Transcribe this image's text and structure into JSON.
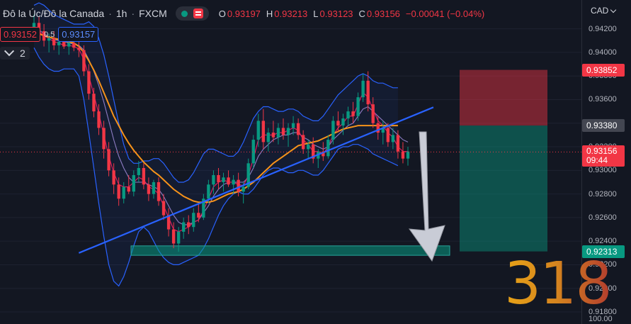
{
  "header": {
    "symbol": "Đô la Úc/Đô la Canada",
    "timeframe": "1h",
    "broker": "FXCM",
    "ohlc": {
      "o_label": "O",
      "o": "0.93197",
      "h_label": "H",
      "h": "0.93213",
      "l_label": "L",
      "l": "0.93123",
      "c_label": "C",
      "c": "0.93156",
      "change": "−0.00041 (−0.04%)"
    }
  },
  "quote": {
    "bid": "0.93152",
    "ask": "0.93157",
    "spread": "0.5"
  },
  "indicators": {
    "count": "2"
  },
  "axis": {
    "currency": "CAD",
    "ticks": [
      "0.94200",
      "0.94000",
      "0.93800",
      "0.93600",
      "0.93400",
      "0.93200",
      "0.93000",
      "0.92800",
      "0.92600",
      "0.92400",
      "0.92200",
      "0.92000",
      "0.91800"
    ],
    "extra_tick": "100.00"
  },
  "price_labels": {
    "stop": "0.93852",
    "entry": "0.93380",
    "current": "0.93156",
    "countdown": "09:44",
    "target": "0.92313"
  },
  "watermark": "318",
  "colors": {
    "up": "#089981",
    "down": "#f23645",
    "bb": "#2962ff",
    "ma": "#f7931a",
    "trend": "#2962ff",
    "bg": "#131722"
  },
  "chart_data": {
    "type": "candlestick",
    "ylim": [
      0.918,
      0.943
    ],
    "candles": [
      [
        0.942,
        0.9432,
        0.941,
        0.9425
      ],
      [
        0.9425,
        0.943,
        0.9413,
        0.9418
      ],
      [
        0.9418,
        0.9424,
        0.9405,
        0.941
      ],
      [
        0.941,
        0.9416,
        0.94,
        0.9412
      ],
      [
        0.9412,
        0.9418,
        0.9402,
        0.9406
      ],
      [
        0.9406,
        0.9412,
        0.9398,
        0.9409
      ],
      [
        0.9409,
        0.9414,
        0.9403,
        0.9405
      ],
      [
        0.9405,
        0.941,
        0.9398,
        0.9408
      ],
      [
        0.9408,
        0.9413,
        0.9401,
        0.9404
      ],
      [
        0.9404,
        0.941,
        0.9396,
        0.9402
      ],
      [
        0.9402,
        0.9406,
        0.938,
        0.9384
      ],
      [
        0.9384,
        0.939,
        0.936,
        0.9365
      ],
      [
        0.9365,
        0.937,
        0.9345,
        0.935
      ],
      [
        0.935,
        0.9356,
        0.933,
        0.9336
      ],
      [
        0.9336,
        0.9342,
        0.931,
        0.9318
      ],
      [
        0.9318,
        0.9324,
        0.9295,
        0.93
      ],
      [
        0.93,
        0.9306,
        0.928,
        0.9288
      ],
      [
        0.9288,
        0.9294,
        0.927,
        0.9276
      ],
      [
        0.9276,
        0.929,
        0.9272,
        0.9286
      ],
      [
        0.9286,
        0.9296,
        0.928,
        0.9282
      ],
      [
        0.9282,
        0.93,
        0.9278,
        0.9296
      ],
      [
        0.9296,
        0.9308,
        0.929,
        0.9302
      ],
      [
        0.9302,
        0.9306,
        0.9284,
        0.9288
      ],
      [
        0.9288,
        0.9294,
        0.9274,
        0.928
      ],
      [
        0.928,
        0.9292,
        0.9276,
        0.929
      ],
      [
        0.929,
        0.9294,
        0.927,
        0.9274
      ],
      [
        0.9274,
        0.928,
        0.9258,
        0.9262
      ],
      [
        0.9262,
        0.9268,
        0.9244,
        0.925
      ],
      [
        0.925,
        0.9256,
        0.9234,
        0.9238
      ],
      [
        0.9238,
        0.9252,
        0.9231,
        0.9248
      ],
      [
        0.9248,
        0.926,
        0.9242,
        0.9256
      ],
      [
        0.9256,
        0.9262,
        0.9246,
        0.9252
      ],
      [
        0.9252,
        0.9268,
        0.9248,
        0.9264
      ],
      [
        0.9264,
        0.9272,
        0.9256,
        0.926
      ],
      [
        0.926,
        0.928,
        0.9258,
        0.9276
      ],
      [
        0.9276,
        0.9292,
        0.9272,
        0.9288
      ],
      [
        0.9288,
        0.93,
        0.928,
        0.9296
      ],
      [
        0.9296,
        0.9302,
        0.9284,
        0.929
      ],
      [
        0.929,
        0.9298,
        0.9282,
        0.9294
      ],
      [
        0.9294,
        0.93,
        0.9286,
        0.9288
      ],
      [
        0.9288,
        0.9296,
        0.928,
        0.9292
      ],
      [
        0.9292,
        0.9298,
        0.9278,
        0.9282
      ],
      [
        0.9282,
        0.929,
        0.9272,
        0.9286
      ],
      [
        0.9286,
        0.931,
        0.9284,
        0.9306
      ],
      [
        0.9306,
        0.933,
        0.9302,
        0.9326
      ],
      [
        0.9326,
        0.9348,
        0.932,
        0.9342
      ],
      [
        0.9342,
        0.9352,
        0.9318,
        0.9324
      ],
      [
        0.9324,
        0.9336,
        0.9316,
        0.9332
      ],
      [
        0.9332,
        0.9342,
        0.9324,
        0.9328
      ],
      [
        0.9328,
        0.934,
        0.9322,
        0.9336
      ],
      [
        0.9336,
        0.9344,
        0.9326,
        0.933
      ],
      [
        0.933,
        0.934,
        0.932,
        0.9336
      ],
      [
        0.9336,
        0.9346,
        0.933,
        0.934
      ],
      [
        0.934,
        0.9344,
        0.9326,
        0.933
      ],
      [
        0.933,
        0.9334,
        0.9314,
        0.9318
      ],
      [
        0.9318,
        0.9326,
        0.931,
        0.9322
      ],
      [
        0.9322,
        0.9328,
        0.9306,
        0.931
      ],
      [
        0.931,
        0.9318,
        0.9302,
        0.9316
      ],
      [
        0.9316,
        0.9324,
        0.9308,
        0.9312
      ],
      [
        0.9312,
        0.933,
        0.931,
        0.9326
      ],
      [
        0.9326,
        0.9346,
        0.9322,
        0.9342
      ],
      [
        0.9342,
        0.935,
        0.9332,
        0.9338
      ],
      [
        0.9338,
        0.9348,
        0.933,
        0.9344
      ],
      [
        0.9344,
        0.9354,
        0.9338,
        0.935
      ],
      [
        0.935,
        0.9358,
        0.934,
        0.9346
      ],
      [
        0.9346,
        0.9366,
        0.9342,
        0.9362
      ],
      [
        0.9362,
        0.9382,
        0.9358,
        0.9376
      ],
      [
        0.9376,
        0.9384,
        0.935,
        0.9356
      ],
      [
        0.9356,
        0.9362,
        0.9336,
        0.934
      ],
      [
        0.934,
        0.9346,
        0.9326,
        0.9332
      ],
      [
        0.9332,
        0.9342,
        0.9322,
        0.9336
      ],
      [
        0.9336,
        0.934,
        0.932,
        0.9324
      ],
      [
        0.9324,
        0.9336,
        0.9318,
        0.933
      ],
      [
        0.933,
        0.9334,
        0.931,
        0.9316
      ],
      [
        0.9316,
        0.9324,
        0.9306,
        0.931
      ],
      [
        0.931,
        0.932,
        0.9304,
        0.9316
      ]
    ],
    "bb_upper": [
      0.944,
      0.9442,
      0.944,
      0.9436,
      0.9432,
      0.943,
      0.9428,
      0.9426,
      0.9424,
      0.9424,
      0.9424,
      0.9426,
      0.9422,
      0.9412,
      0.9398,
      0.938,
      0.936,
      0.934,
      0.9322,
      0.931,
      0.9306,
      0.9306,
      0.9308,
      0.9308,
      0.931,
      0.931,
      0.9306,
      0.93,
      0.9294,
      0.929,
      0.929,
      0.9292,
      0.9298,
      0.9306,
      0.9314,
      0.9318,
      0.9318,
      0.9316,
      0.9314,
      0.9312,
      0.9312,
      0.9316,
      0.9324,
      0.9334,
      0.9344,
      0.935,
      0.9354,
      0.9354,
      0.9352,
      0.935,
      0.935,
      0.9352,
      0.9352,
      0.935,
      0.9346,
      0.9344,
      0.9342,
      0.9342,
      0.9346,
      0.9352,
      0.9358,
      0.9364,
      0.9368,
      0.9372,
      0.9376,
      0.938,
      0.9382,
      0.938,
      0.9376,
      0.9374,
      0.9374,
      0.9372,
      0.937,
      0.937
    ],
    "bb_lower": [
      0.9404,
      0.9396,
      0.939,
      0.9386,
      0.9384,
      0.9384,
      0.9386,
      0.9386,
      0.9386,
      0.938,
      0.936,
      0.9332,
      0.9302,
      0.9272,
      0.9244,
      0.922,
      0.9206,
      0.9202,
      0.921,
      0.9222,
      0.9236,
      0.9248,
      0.9252,
      0.9248,
      0.924,
      0.9232,
      0.9226,
      0.9222,
      0.922,
      0.922,
      0.9222,
      0.9224,
      0.9226,
      0.9228,
      0.9234,
      0.9242,
      0.9252,
      0.9262,
      0.927,
      0.9276,
      0.928,
      0.9282,
      0.928,
      0.928,
      0.9284,
      0.929,
      0.9296,
      0.93,
      0.9302,
      0.9302,
      0.93,
      0.9298,
      0.9298,
      0.93,
      0.93,
      0.9298,
      0.9296,
      0.9296,
      0.93,
      0.9306,
      0.9312,
      0.9318,
      0.932,
      0.932,
      0.9322,
      0.9322,
      0.932,
      0.9318,
      0.9314,
      0.9312,
      0.931,
      0.9308,
      0.9306,
      0.9304
    ],
    "ma": [
      0.9418,
      0.9416,
      0.9414,
      0.9413,
      0.9412,
      0.9411,
      0.941,
      0.9409,
      0.9408,
      0.9405,
      0.94,
      0.9393,
      0.9385,
      0.9376,
      0.9366,
      0.9356,
      0.9346,
      0.9338,
      0.933,
      0.9323,
      0.9317,
      0.9312,
      0.9307,
      0.9303,
      0.9299,
      0.9296,
      0.9292,
      0.9288,
      0.9284,
      0.9281,
      0.9278,
      0.9276,
      0.9274,
      0.9273,
      0.9273,
      0.9273,
      0.9274,
      0.9276,
      0.9278,
      0.928,
      0.9281,
      0.9282,
      0.9284,
      0.9287,
      0.929,
      0.9294,
      0.9298,
      0.9302,
      0.9306,
      0.9309,
      0.9312,
      0.9315,
      0.9318,
      0.9321,
      0.9322,
      0.9323,
      0.9324,
      0.9325,
      0.9327,
      0.9329,
      0.9331,
      0.9333,
      0.9335,
      0.9336,
      0.9337,
      0.9338,
      0.9338,
      0.9338,
      0.9338,
      0.9338,
      0.9338,
      0.9338,
      0.9338,
      0.9338
    ],
    "fast": [
      0.942,
      0.9418,
      0.9414,
      0.9412,
      0.9409,
      0.9408,
      0.9406,
      0.9406,
      0.9405,
      0.9403,
      0.9394,
      0.938,
      0.9364,
      0.9348,
      0.933,
      0.9312,
      0.9298,
      0.9288,
      0.9286,
      0.9286,
      0.929,
      0.9294,
      0.9292,
      0.9286,
      0.9284,
      0.928,
      0.927,
      0.926,
      0.925,
      0.9248,
      0.925,
      0.9252,
      0.9256,
      0.9258,
      0.9266,
      0.9276,
      0.9286,
      0.929,
      0.9292,
      0.929,
      0.929,
      0.9288,
      0.9287,
      0.9296,
      0.931,
      0.9326,
      0.933,
      0.933,
      0.933,
      0.9332,
      0.9332,
      0.9334,
      0.9336,
      0.9334,
      0.9326,
      0.9322,
      0.9316,
      0.9316,
      0.9314,
      0.932,
      0.933,
      0.9336,
      0.934,
      0.9346,
      0.9346,
      0.9356,
      0.9366,
      0.9362,
      0.9352,
      0.9342,
      0.9338,
      0.9332,
      0.9328,
      0.932,
      0.9316,
      0.9316
    ],
    "mid": [
      0.9422,
      0.9419,
      0.9416,
      0.9413,
      0.9411,
      0.941,
      0.9409,
      0.9408,
      0.9407,
      0.9406,
      0.9402,
      0.9394,
      0.9384,
      0.9372,
      0.9358,
      0.9342,
      0.9326,
      0.9312,
      0.9302,
      0.9294,
      0.929,
      0.929,
      0.929,
      0.9288,
      0.9286,
      0.9284,
      0.9278,
      0.927,
      0.9262,
      0.9256,
      0.9254,
      0.9254,
      0.9256,
      0.9258,
      0.9264,
      0.927,
      0.9278,
      0.9284,
      0.9288,
      0.929,
      0.929,
      0.929,
      0.929,
      0.9294,
      0.9302,
      0.9312,
      0.9318,
      0.9322,
      0.9326,
      0.9328,
      0.933,
      0.933,
      0.9332,
      0.9332,
      0.9328,
      0.9326,
      0.9322,
      0.932,
      0.9318,
      0.932,
      0.9326,
      0.933,
      0.9334,
      0.9338,
      0.934,
      0.9346,
      0.9352,
      0.9354,
      0.935,
      0.9346,
      0.9342,
      0.9338,
      0.9334,
      0.933,
      0.9326,
      0.9324
    ],
    "trend_line": {
      "x1": 9,
      "y1": 0.923,
      "x2": 107,
      "y2": 0.9354
    },
    "target_zone": {
      "x1": 0,
      "x2": 110,
      "top": 0.9236,
      "bottom": 0.9228
    },
    "position": {
      "x1": 114,
      "x2": 140,
      "stop": 0.93852,
      "entry": 0.9338,
      "target": 0.92313
    },
    "current_price": 0.93156
  }
}
